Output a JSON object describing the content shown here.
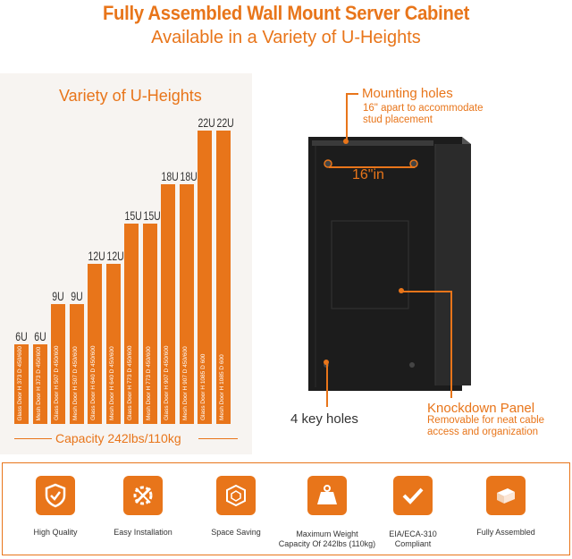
{
  "header": {
    "title": "Fully Assembled Wall Mount Server Cabinet",
    "subtitle": "Available in a Variety of U-Heights"
  },
  "chart_data": {
    "type": "bar",
    "title": "Variety of U-Heights",
    "categories": [
      "6U Glass Door",
      "6U Mesh Door",
      "9U Glass Door",
      "9U Mesh Door",
      "12U Glass Door",
      "12U Mesh Door",
      "15U Glass Door",
      "15U Mesh Door",
      "18U Glass Door",
      "18U Mesh Door",
      "22U Glass Door",
      "22U Mesh Door"
    ],
    "values": [
      6,
      6,
      9,
      9,
      12,
      12,
      15,
      15,
      18,
      18,
      22,
      22
    ],
    "top_labels": [
      "6U",
      "6U",
      "9U",
      "9U",
      "12U",
      "12U",
      "15U",
      "15U",
      "18U",
      "18U",
      "22U",
      "22U"
    ],
    "specs": [
      "Glass Door    H 373  D 450/600",
      "Mesh Door    H 373  D 450/600",
      "Glass Door    H 507  D 450/600",
      "Mesh Door    H 507  D 450/600",
      "Glass Door    H 640  D 450/600",
      "Mesh Door    H 640  D 450/600",
      "Glass Door    H 773  D 450/600",
      "Mesh Door    H 773  D 450/600",
      "Glass Door    H 907  D 450/600",
      "Mesh Door    H 907  D 450/600",
      "Glass Door    H 1085  D 600",
      "Mesh Door    H 1085  D 600"
    ],
    "color": "#e8751a",
    "ylim": [
      0,
      22
    ],
    "footer": "Capacity 242lbs/110kg"
  },
  "callouts": {
    "mounting_title": "Mounting holes",
    "mounting_desc_1": "16\" apart to accommodate",
    "mounting_desc_2": "stud placement",
    "width_label": "16\"in",
    "key_holes": "4 key holes",
    "knockdown_title": "Knockdown Panel",
    "knockdown_desc_1": "Removable for neat cable",
    "knockdown_desc_2": "access and organization"
  },
  "features": [
    {
      "icon": "shield-check-icon",
      "label_1": "High Quality",
      "label_2": ""
    },
    {
      "icon": "tools-gear-icon",
      "label_1": "Easy Installation",
      "label_2": ""
    },
    {
      "icon": "cube-icon",
      "label_1": "Space Saving",
      "label_2": ""
    },
    {
      "icon": "weight-icon",
      "label_1": "Maximum Weight",
      "label_2": "Capacity Of 242lbs (110kg)"
    },
    {
      "icon": "checkmark-icon",
      "label_1": "EIA/ECA-310",
      "label_2": "Compliant"
    },
    {
      "icon": "box-icon",
      "label_1": "Fully Assembled",
      "label_2": ""
    }
  ],
  "colors": {
    "accent": "#e8751a",
    "cabinet": "#1c1c1c"
  }
}
